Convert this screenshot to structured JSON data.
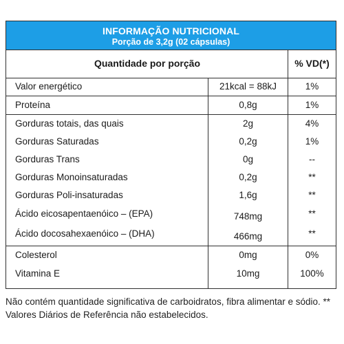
{
  "header": {
    "title": "INFORMAÇÃO NUTRICIONAL",
    "serving": "Porção de 3,2g (02 cápsulas)",
    "background_color": "#1d9ee6"
  },
  "columns": {
    "quantity": "Quantidade por porção",
    "daily_value": "% VD(*)"
  },
  "rows": [
    {
      "name": "Valor energético",
      "amount": "21kcal = 88kJ",
      "dv": "1%"
    },
    {
      "name": "Proteína",
      "amount": "0,8g",
      "dv": "1%"
    },
    {
      "name": "Gorduras totais, das quais",
      "amount": "2g",
      "dv": "4%"
    },
    {
      "name": "Gorduras Saturadas",
      "amount": "0,2g",
      "dv": "1%"
    },
    {
      "name": "Gorduras Trans",
      "amount": "0g",
      "dv": "--"
    },
    {
      "name": "Gorduras Monoinsaturadas",
      "amount": "0,2g",
      "dv": "**"
    },
    {
      "name": "Gorduras Poli-insaturadas",
      "amount": "1,6g",
      "dv": "**"
    },
    {
      "name": "Ácido eicosapentaenóico – (EPA)",
      "amount": "748mg",
      "dv": "**"
    },
    {
      "name": "Ácido docosahexaenóico – (DHA)",
      "amount": "466mg",
      "dv": "**"
    },
    {
      "name": "Colesterol",
      "amount": "0mg",
      "dv": "0%"
    },
    {
      "name": "Vitamina E",
      "amount": "10mg",
      "dv": "100%"
    }
  ],
  "footnote": {
    "line1": "Não contém quantidade significativa de carboidratos, fibra alimentar e sódio. **",
    "line2": "Valores Diários de Referência não estabelecidos."
  }
}
